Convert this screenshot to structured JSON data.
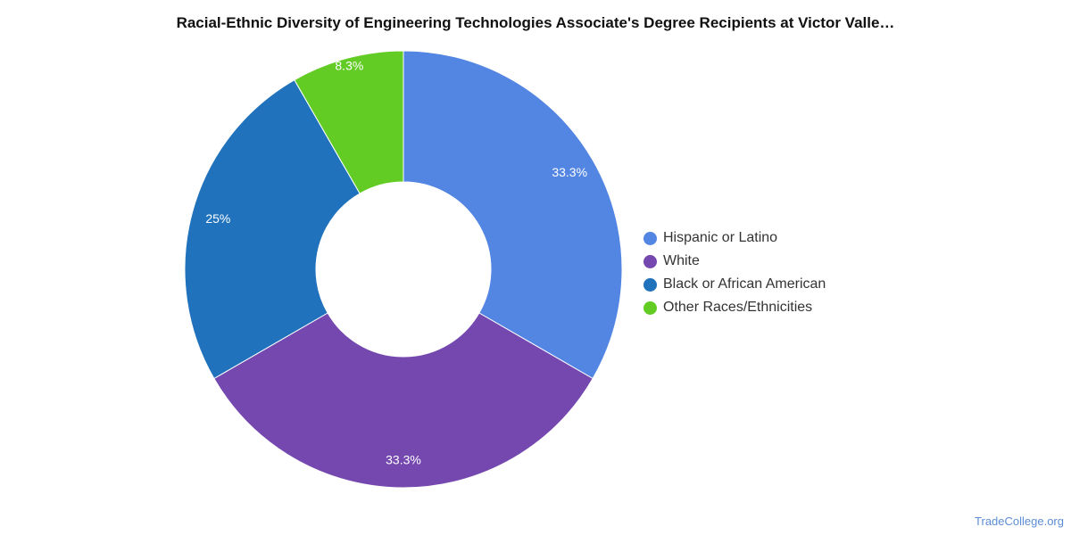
{
  "chart_data": {
    "type": "pie",
    "title": "Racial-Ethnic Diversity of Engineering Technologies Associate's Degree Recipients at Victor Valle…",
    "categories": [
      "Hispanic or Latino",
      "White",
      "Black or African American",
      "Other Races/Ethnicities"
    ],
    "values": [
      33.3,
      33.3,
      25,
      8.3
    ],
    "value_labels": [
      "33.3%",
      "33.3%",
      "25%",
      "8.3%"
    ],
    "colors": [
      "#5385e3",
      "#7548b0",
      "#1f72bb",
      "#62cc25"
    ],
    "donut": true,
    "legend_position": "right"
  },
  "watermark": "TradeCollege.org"
}
